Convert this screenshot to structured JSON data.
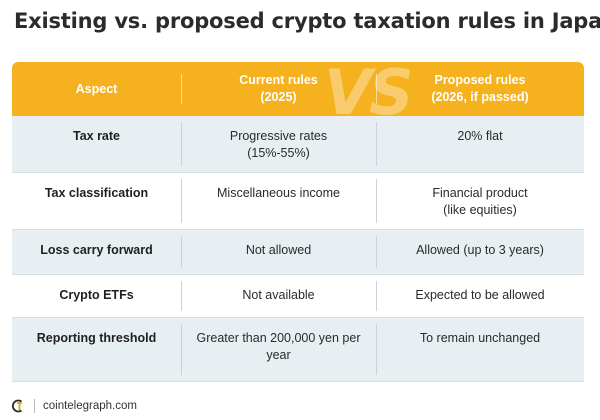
{
  "title": "Existing vs. proposed crypto taxation rules in Japan",
  "header": {
    "vs_text": "VS",
    "aspect": "Aspect",
    "current_line1": "Current rules",
    "current_line2": "(2025)",
    "proposed_line1": "Proposed rules",
    "proposed_line2": "(2026, if passed)"
  },
  "rows": [
    {
      "aspect": "Tax rate",
      "current": [
        "Progressive rates",
        "(15%-55%)"
      ],
      "proposed": [
        "20% flat"
      ]
    },
    {
      "aspect": "Tax classification",
      "current": [
        "Miscellaneous income"
      ],
      "proposed": [
        "Financial product",
        "(like equities)"
      ]
    },
    {
      "aspect": "Loss carry forward",
      "current": [
        "Not allowed"
      ],
      "proposed": [
        "Allowed (up to 3 years)"
      ]
    },
    {
      "aspect": "Crypto ETFs",
      "current": [
        "Not available"
      ],
      "proposed": [
        "Expected to be allowed"
      ]
    },
    {
      "aspect": "Reporting threshold",
      "current": [
        "Greater than 200,000 yen per",
        "year"
      ],
      "proposed": [
        "To remain unchanged"
      ]
    }
  ],
  "source": "cointelegraph.com",
  "colors": {
    "header": "#f5b11e",
    "alt_row": "#e8eff3"
  }
}
